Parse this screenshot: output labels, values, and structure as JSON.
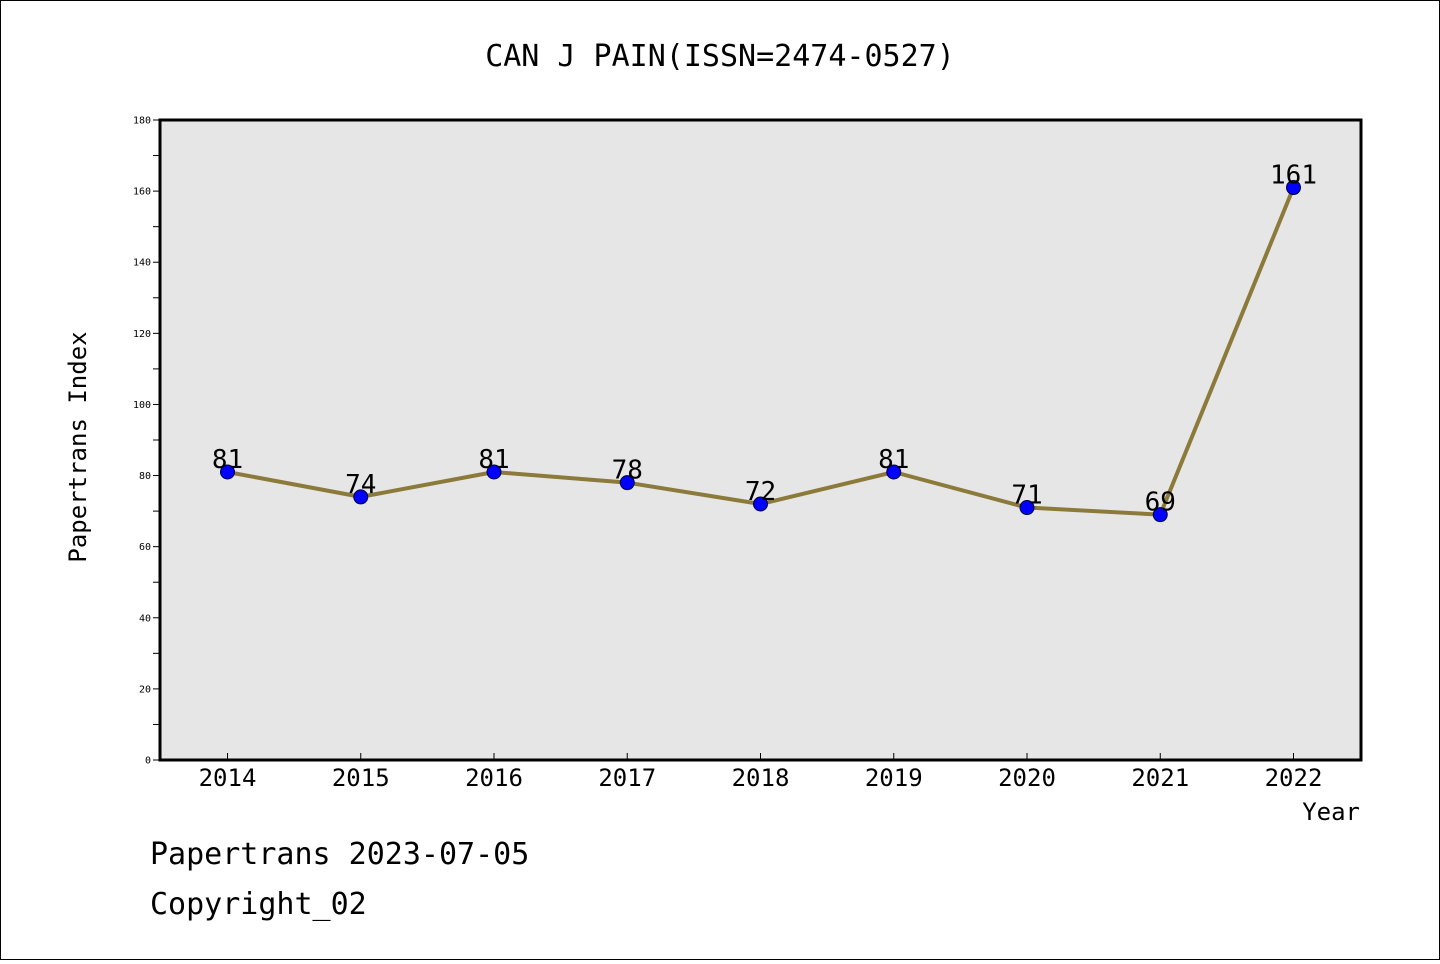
{
  "chart_data": {
    "type": "line",
    "title": "CAN J PAIN(ISSN=2474-0527)",
    "xlabel": "Year",
    "ylabel": "Papertrans Index",
    "categories": [
      "2014",
      "2015",
      "2016",
      "2017",
      "2018",
      "2019",
      "2020",
      "2021",
      "2022"
    ],
    "values": [
      81,
      74,
      81,
      78,
      72,
      81,
      71,
      69,
      161
    ],
    "ylim": [
      0,
      180
    ],
    "y_ticks": [
      0,
      20,
      40,
      60,
      80,
      100,
      120,
      140,
      160,
      180
    ],
    "grid": false,
    "line_color": "#8c7a3a",
    "marker_color": "#0000ff",
    "plot_background": "#e6e6e6"
  },
  "footer": {
    "line1": "Papertrans 2023-07-05",
    "line2": "Copyright_02"
  }
}
